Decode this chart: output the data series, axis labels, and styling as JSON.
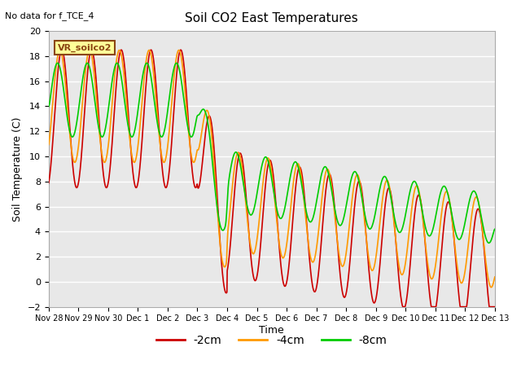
{
  "title": "Soil CO2 East Temperatures",
  "no_data_text": "No data for f_TCE_4",
  "ylabel": "Soil Temperature (C)",
  "xlabel": "Time",
  "legend_label": "VR_soilco2",
  "ylim": [
    -2,
    20
  ],
  "yticks": [
    -2,
    0,
    2,
    4,
    6,
    8,
    10,
    12,
    14,
    16,
    18,
    20
  ],
  "xtick_labels": [
    "Nov 28",
    "Nov 29",
    "Nov 30",
    "Dec 1",
    "Dec 2",
    "Dec 3",
    "Dec 4",
    "Dec 5",
    "Dec 6",
    "Dec 7",
    "Dec 8",
    "Dec 9",
    "Dec 10",
    "Dec 11",
    "Dec 12",
    "Dec 13"
  ],
  "colors": {
    "2cm": "#cc0000",
    "4cm": "#ff9900",
    "8cm": "#00cc00"
  },
  "fig_bg": "#ffffff",
  "plot_bg": "#e8e8e8",
  "grid_color": "#ffffff",
  "line_width": 1.2
}
